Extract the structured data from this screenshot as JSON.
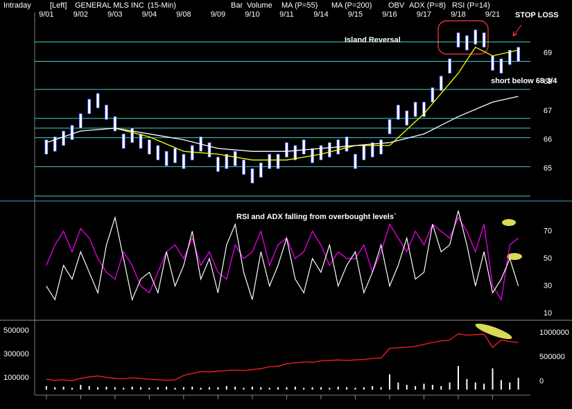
{
  "header": [
    {
      "text": "Intraday",
      "color": "#ffffff"
    },
    {
      "text": "[Left]",
      "color": "#ffffff"
    },
    {
      "text": "GENERAL MLS INC",
      "color": "#ffffff"
    },
    {
      "text": "(15-Min)",
      "color": "#ffffff"
    },
    {
      "text": "Bar",
      "color": "#ffffff"
    },
    {
      "text": "Volume",
      "color": "#ffffff"
    },
    {
      "text": "MA (P=55)",
      "color": "#ffff00"
    },
    {
      "text": "MA (P=200)",
      "color": "#ffffff"
    },
    {
      "text": "OBV",
      "color": "#ff2020"
    },
    {
      "text": "ADX (P=8)",
      "color": "#ffffff"
    },
    {
      "text": "RSI (P=14)",
      "color": "#ff00ff"
    }
  ],
  "chart_data": [
    {
      "type": "ohlc",
      "color": "#ffffff",
      "x": [
        0,
        0.25,
        0.5,
        0.75,
        1,
        1.25,
        1.5,
        1.75,
        2,
        2.25,
        2.5,
        2.75,
        3,
        3.25,
        3.5,
        3.75,
        4,
        4.25,
        4.5,
        4.75,
        5,
        5.25,
        5.5,
        5.75,
        6,
        6.25,
        6.5,
        6.75,
        7,
        7.25,
        7.5,
        7.75,
        8,
        8.25,
        8.5,
        8.75,
        9,
        9.25,
        9.5,
        9.75,
        10,
        10.25,
        10.5,
        10.75,
        11,
        11.25,
        11.5,
        11.75,
        12,
        12.25,
        12.5,
        12.75,
        13,
        13.25,
        13.5,
        13.75
      ],
      "high": [
        66.0,
        66.1,
        66.3,
        66.5,
        66.9,
        67.4,
        67.6,
        67.2,
        66.8,
        66.2,
        66.4,
        66.2,
        66.0,
        65.8,
        65.6,
        65.7,
        65.5,
        65.8,
        66.1,
        65.9,
        65.4,
        65.5,
        65.6,
        65.3,
        65.0,
        65.2,
        65.5,
        65.5,
        65.9,
        65.8,
        66.0,
        65.7,
        65.8,
        65.9,
        66.0,
        66.1,
        65.5,
        65.8,
        65.9,
        66.0,
        66.7,
        67.2,
        67.0,
        67.3,
        67.3,
        67.8,
        68.2,
        68.8,
        69.7,
        69.6,
        69.8,
        69.7,
        68.9,
        68.8,
        69.1,
        69.2
      ],
      "low": [
        65.5,
        65.6,
        65.8,
        66.0,
        66.4,
        66.9,
        67.1,
        66.7,
        66.3,
        65.7,
        65.9,
        65.7,
        65.5,
        65.3,
        65.1,
        65.2,
        65.0,
        65.3,
        65.6,
        65.4,
        64.9,
        65.0,
        65.1,
        64.8,
        64.5,
        64.7,
        65.0,
        65.0,
        65.4,
        65.3,
        65.5,
        65.2,
        65.3,
        65.4,
        65.5,
        65.6,
        65.0,
        65.3,
        65.4,
        65.5,
        66.2,
        66.7,
        66.5,
        66.8,
        66.8,
        67.3,
        67.7,
        68.3,
        69.2,
        69.1,
        69.3,
        69.2,
        68.4,
        68.3,
        68.6,
        68.7
      ],
      "series": [
        {
          "color": "#ffff00",
          "x": [
            2,
            3,
            4,
            5,
            6,
            7,
            8,
            9,
            10,
            11,
            12,
            12.5,
            13,
            13.75
          ],
          "values": [
            66.4,
            66.1,
            65.6,
            65.5,
            65.3,
            65.3,
            65.5,
            65.8,
            65.8,
            66.9,
            68.3,
            69.2,
            68.9,
            69.1
          ]
        },
        {
          "color": "#ffffff",
          "x": [
            0,
            1,
            2,
            3,
            4,
            5,
            6,
            7,
            8,
            9,
            10,
            11,
            12,
            13,
            13.75
          ],
          "values": [
            65.9,
            66.3,
            66.4,
            66.2,
            66.0,
            65.7,
            65.6,
            65.6,
            65.7,
            65.8,
            65.9,
            66.2,
            66.8,
            67.3,
            67.5
          ]
        }
      ],
      "levels": [
        69.38,
        68.71,
        67.74,
        66.74,
        66.4,
        66.07,
        65.07,
        64.05
      ],
      "level_color": "#40d0d0",
      "ylim": [
        64,
        70.4
      ],
      "yticks": [
        65,
        66,
        67,
        68,
        69
      ],
      "xlim": [
        -0.34,
        14.04
      ],
      "xticks": [
        {
          "value": 0,
          "label": "9/01"
        },
        {
          "value": 1,
          "label": "9/02"
        },
        {
          "value": 2,
          "label": "9/03"
        },
        {
          "value": 3,
          "label": "9/04"
        },
        {
          "value": 4,
          "label": "9/08"
        },
        {
          "value": 5,
          "label": "9/09"
        },
        {
          "value": 6,
          "label": "9/10"
        },
        {
          "value": 7,
          "label": "9/11"
        },
        {
          "value": 8,
          "label": "9/14"
        },
        {
          "value": 9,
          "label": "9/15"
        },
        {
          "value": 10,
          "label": "9/16"
        },
        {
          "value": 11,
          "label": "9/17"
        },
        {
          "value": 12,
          "label": "9/18"
        },
        {
          "value": 13,
          "label": "9/21"
        }
      ],
      "annotations": [
        {
          "text": "Island Reversal",
          "color": "#ffff00"
        },
        {
          "text": "STOP LOSS",
          "color": "#ffff00"
        },
        {
          "text": "short below 68 3/4",
          "color": "#ffff00"
        }
      ]
    },
    {
      "type": "line",
      "x": [
        0,
        0.25,
        0.5,
        0.75,
        1,
        1.25,
        1.5,
        1.75,
        2,
        2.25,
        2.5,
        2.75,
        3,
        3.25,
        3.5,
        3.75,
        4,
        4.25,
        4.5,
        4.75,
        5,
        5.25,
        5.5,
        5.75,
        6,
        6.25,
        6.5,
        6.75,
        7,
        7.25,
        7.5,
        7.75,
        8,
        8.25,
        8.5,
        8.75,
        9,
        9.25,
        9.5,
        9.75,
        10,
        10.25,
        10.5,
        10.75,
        11,
        11.25,
        11.5,
        11.75,
        12,
        12.25,
        12.5,
        12.75,
        13,
        13.25,
        13.5,
        13.75
      ],
      "series": [
        {
          "color": "#ff00ff",
          "values": [
            45,
            60,
            70,
            55,
            72,
            65,
            50,
            40,
            35,
            55,
            45,
            30,
            25,
            40,
            55,
            60,
            50,
            65,
            45,
            55,
            40,
            35,
            60,
            50,
            55,
            70,
            45,
            60,
            65,
            50,
            55,
            70,
            60,
            45,
            55,
            50,
            50,
            60,
            40,
            55,
            75,
            65,
            55,
            70,
            60,
            75,
            70,
            65,
            80,
            70,
            55,
            75,
            30,
            20,
            60,
            65
          ]
        },
        {
          "color": "#ffffff",
          "values": [
            30,
            20,
            45,
            35,
            55,
            40,
            25,
            60,
            80,
            50,
            20,
            35,
            40,
            25,
            55,
            30,
            45,
            70,
            35,
            50,
            25,
            60,
            75,
            40,
            20,
            55,
            30,
            45,
            65,
            35,
            25,
            50,
            40,
            60,
            30,
            45,
            55,
            25,
            40,
            60,
            30,
            45,
            65,
            35,
            40,
            75,
            55,
            60,
            85,
            60,
            30,
            55,
            25,
            35,
            50,
            30
          ]
        }
      ],
      "ylim": [
        6,
        91
      ],
      "yticks": [
        10,
        30,
        50,
        70
      ],
      "annotations": [
        {
          "text": "RSI and ADX falling from overbought levels`",
          "color": "#ffff00"
        }
      ]
    },
    {
      "type": "bar",
      "color": "#ffffff",
      "x": [
        0,
        0.25,
        0.5,
        0.75,
        1,
        1.25,
        1.5,
        1.75,
        2,
        2.25,
        2.5,
        2.75,
        3,
        3.25,
        3.5,
        3.75,
        4,
        4.25,
        4.5,
        4.75,
        5,
        5.25,
        5.5,
        5.75,
        6,
        6.25,
        6.5,
        6.75,
        7,
        7.25,
        7.5,
        7.75,
        8,
        8.25,
        8.5,
        8.75,
        9,
        9.25,
        9.5,
        9.75,
        10,
        10.25,
        10.5,
        10.75,
        11,
        11.25,
        11.5,
        11.75,
        12,
        12.25,
        12.5,
        12.75,
        13,
        13.25,
        13.5,
        13.75
      ],
      "values": [
        30000,
        20000,
        25000,
        15000,
        40000,
        30000,
        20000,
        25000,
        20000,
        15000,
        25000,
        20000,
        15000,
        20000,
        25000,
        15000,
        20000,
        25000,
        15000,
        20000,
        20000,
        30000,
        25000,
        15000,
        25000,
        20000,
        15000,
        20000,
        20000,
        25000,
        15000,
        20000,
        20000,
        15000,
        25000,
        20000,
        15000,
        20000,
        30000,
        20000,
        130000,
        60000,
        40000,
        30000,
        50000,
        40000,
        30000,
        60000,
        200000,
        90000,
        60000,
        50000,
        180000,
        80000,
        60000,
        100000
      ],
      "series": [
        {
          "color": "#ff2020",
          "axis": "y2",
          "values": [
            40000,
            20000,
            30000,
            10000,
            60000,
            90000,
            110000,
            80000,
            60000,
            50000,
            70000,
            60000,
            40000,
            30000,
            20000,
            30000,
            120000,
            160000,
            200000,
            190000,
            210000,
            220000,
            230000,
            220000,
            240000,
            260000,
            300000,
            310000,
            360000,
            380000,
            400000,
            390000,
            420000,
            430000,
            440000,
            430000,
            440000,
            450000,
            470000,
            480000,
            680000,
            690000,
            700000,
            720000,
            760000,
            800000,
            830000,
            850000,
            980000,
            950000,
            960000,
            970000,
            700000,
            850000,
            820000,
            800000
          ]
        }
      ],
      "ylim": [
        -47000,
        570000
      ],
      "yticks": [
        100000,
        300000,
        500000
      ],
      "y2lim": [
        -286000,
        1214000
      ],
      "y2ticks": [
        0,
        500000,
        1000000
      ]
    }
  ]
}
